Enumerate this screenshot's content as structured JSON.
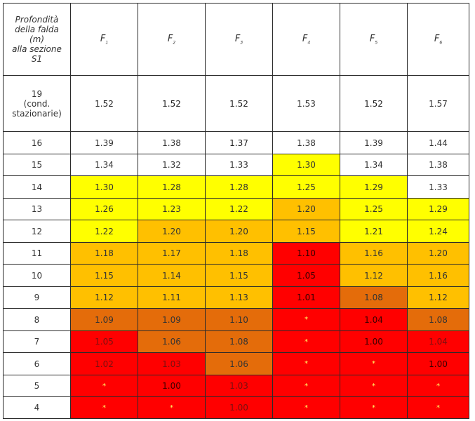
{
  "header": {
    "depth_label_lines": [
      "Profondità",
      "della falda",
      "(m)",
      "alla sezione",
      "S1"
    ],
    "columns": [
      {
        "letter": "F",
        "sub": "1"
      },
      {
        "letter": "F",
        "sub": "2"
      },
      {
        "letter": "F",
        "sub": "3"
      },
      {
        "letter": "F",
        "sub": "4"
      },
      {
        "letter": "F",
        "sub": "5"
      },
      {
        "letter": "F",
        "sub": "6"
      }
    ]
  },
  "rows": [
    {
      "label_lines": [
        "19",
        "(cond.",
        "stazionarie)"
      ],
      "cells": [
        {
          "v": "1.52",
          "b": true,
          "c": "white"
        },
        {
          "v": "1.52",
          "b": true,
          "c": "white"
        },
        {
          "v": "1.52",
          "b": true,
          "c": "white"
        },
        {
          "v": "1.53",
          "b": false,
          "c": "white"
        },
        {
          "v": "1.52",
          "b": true,
          "c": "white"
        },
        {
          "v": "1.57",
          "b": false,
          "c": "white"
        }
      ]
    },
    {
      "label_lines": [
        "16"
      ],
      "cells": [
        {
          "v": "1.39",
          "b": false,
          "c": "white"
        },
        {
          "v": "1.38",
          "b": false,
          "c": "white"
        },
        {
          "v": "1.37",
          "b": true,
          "c": "white"
        },
        {
          "v": "1.38",
          "b": false,
          "c": "white"
        },
        {
          "v": "1.39",
          "b": false,
          "c": "white"
        },
        {
          "v": "1.44",
          "b": false,
          "c": "white"
        }
      ]
    },
    {
      "label_lines": [
        "15"
      ],
      "cells": [
        {
          "v": "1.34",
          "b": false,
          "c": "white"
        },
        {
          "v": "1.32",
          "b": false,
          "c": "white"
        },
        {
          "v": "1.33",
          "b": false,
          "c": "white"
        },
        {
          "v": "1.30",
          "b": true,
          "c": "yellow"
        },
        {
          "v": "1.34",
          "b": false,
          "c": "white"
        },
        {
          "v": "1.38",
          "b": false,
          "c": "white"
        }
      ]
    },
    {
      "label_lines": [
        "14"
      ],
      "cells": [
        {
          "v": "1.30",
          "b": false,
          "c": "yellow"
        },
        {
          "v": "1.28",
          "b": false,
          "c": "yellow"
        },
        {
          "v": "1.28",
          "b": false,
          "c": "yellow"
        },
        {
          "v": "1.25",
          "b": true,
          "c": "yellow"
        },
        {
          "v": "1.29",
          "b": false,
          "c": "yellow"
        },
        {
          "v": "1.33",
          "b": false,
          "c": "white"
        }
      ]
    },
    {
      "label_lines": [
        "13"
      ],
      "cells": [
        {
          "v": "1.26",
          "b": false,
          "c": "yellow"
        },
        {
          "v": "1.23",
          "b": false,
          "c": "yellow"
        },
        {
          "v": "1.22",
          "b": false,
          "c": "yellow"
        },
        {
          "v": "1.20",
          "b": true,
          "c": "lorange"
        },
        {
          "v": "1.25",
          "b": false,
          "c": "yellow"
        },
        {
          "v": "1.29",
          "b": false,
          "c": "yellow"
        }
      ]
    },
    {
      "label_lines": [
        "12"
      ],
      "cells": [
        {
          "v": "1.22",
          "b": false,
          "c": "yellow"
        },
        {
          "v": "1.20",
          "b": false,
          "c": "lorange"
        },
        {
          "v": "1.20",
          "b": false,
          "c": "lorange"
        },
        {
          "v": "1.15",
          "b": true,
          "c": "lorange"
        },
        {
          "v": "1.21",
          "b": false,
          "c": "yellow"
        },
        {
          "v": "1.24",
          "b": false,
          "c": "yellow"
        }
      ]
    },
    {
      "label_lines": [
        "11"
      ],
      "cells": [
        {
          "v": "1.18",
          "b": false,
          "c": "lorange"
        },
        {
          "v": "1.17",
          "b": false,
          "c": "lorange"
        },
        {
          "v": "1.18",
          "b": false,
          "c": "lorange"
        },
        {
          "v": "1.10",
          "b": true,
          "c": "red"
        },
        {
          "v": "1.16",
          "b": false,
          "c": "lorange"
        },
        {
          "v": "1.20",
          "b": false,
          "c": "lorange"
        }
      ]
    },
    {
      "label_lines": [
        "10"
      ],
      "cells": [
        {
          "v": "1.15",
          "b": false,
          "c": "lorange"
        },
        {
          "v": "1.14",
          "b": false,
          "c": "lorange"
        },
        {
          "v": "1.15",
          "b": false,
          "c": "lorange"
        },
        {
          "v": "1.05",
          "b": true,
          "c": "red"
        },
        {
          "v": "1.12",
          "b": false,
          "c": "lorange"
        },
        {
          "v": "1.16",
          "b": false,
          "c": "lorange"
        }
      ]
    },
    {
      "label_lines": [
        "9"
      ],
      "cells": [
        {
          "v": "1.12",
          "b": false,
          "c": "lorange"
        },
        {
          "v": "1.11",
          "b": false,
          "c": "lorange"
        },
        {
          "v": "1.13",
          "b": false,
          "c": "lorange"
        },
        {
          "v": "1.01",
          "b": true,
          "c": "red"
        },
        {
          "v": "1.08",
          "b": false,
          "c": "dorange"
        },
        {
          "v": "1.12",
          "b": false,
          "c": "lorange"
        }
      ]
    },
    {
      "label_lines": [
        "8"
      ],
      "cells": [
        {
          "v": "1.09",
          "b": false,
          "c": "dorange"
        },
        {
          "v": "1.09",
          "b": false,
          "c": "dorange"
        },
        {
          "v": "1.10",
          "b": false,
          "c": "dorange"
        },
        {
          "v": "*",
          "b": false,
          "c": "red"
        },
        {
          "v": "1.04",
          "b": true,
          "c": "red"
        },
        {
          "v": "1.08",
          "b": false,
          "c": "dorange"
        }
      ]
    },
    {
      "label_lines": [
        "7"
      ],
      "cells": [
        {
          "v": "1.05",
          "b": false,
          "c": "red"
        },
        {
          "v": "1.06",
          "b": false,
          "c": "dorange"
        },
        {
          "v": "1.08",
          "b": false,
          "c": "dorange"
        },
        {
          "v": "*",
          "b": false,
          "c": "red"
        },
        {
          "v": "1.00",
          "b": true,
          "c": "red"
        },
        {
          "v": "1.04",
          "b": false,
          "c": "red"
        }
      ]
    },
    {
      "label_lines": [
        "6"
      ],
      "cells": [
        {
          "v": "1.02",
          "b": false,
          "c": "red"
        },
        {
          "v": "1.03",
          "b": false,
          "c": "red"
        },
        {
          "v": "1.06",
          "b": false,
          "c": "dorange"
        },
        {
          "v": "*",
          "b": false,
          "c": "red"
        },
        {
          "v": "*",
          "b": false,
          "c": "red"
        },
        {
          "v": "1.00",
          "b": true,
          "c": "red"
        }
      ]
    },
    {
      "label_lines": [
        "5"
      ],
      "cells": [
        {
          "v": "*",
          "b": false,
          "c": "red"
        },
        {
          "v": "1.00",
          "b": true,
          "c": "red"
        },
        {
          "v": "1.03",
          "b": false,
          "c": "red"
        },
        {
          "v": "*",
          "b": false,
          "c": "red"
        },
        {
          "v": "*",
          "b": false,
          "c": "red"
        },
        {
          "v": "*",
          "b": false,
          "c": "red"
        }
      ]
    },
    {
      "label_lines": [
        "4"
      ],
      "cells": [
        {
          "v": "*",
          "b": false,
          "c": "red"
        },
        {
          "v": "*",
          "b": false,
          "c": "red"
        },
        {
          "v": "1.00",
          "b": false,
          "c": "red"
        },
        {
          "v": "*",
          "b": false,
          "c": "red"
        },
        {
          "v": "*",
          "b": false,
          "c": "red"
        },
        {
          "v": "*",
          "b": false,
          "c": "red"
        }
      ]
    }
  ],
  "colors": {
    "white": "#ffffff",
    "yellow": "#ffff00",
    "lorange": "#ffc000",
    "dorange": "#e46c0a",
    "red": "#ff0000"
  }
}
